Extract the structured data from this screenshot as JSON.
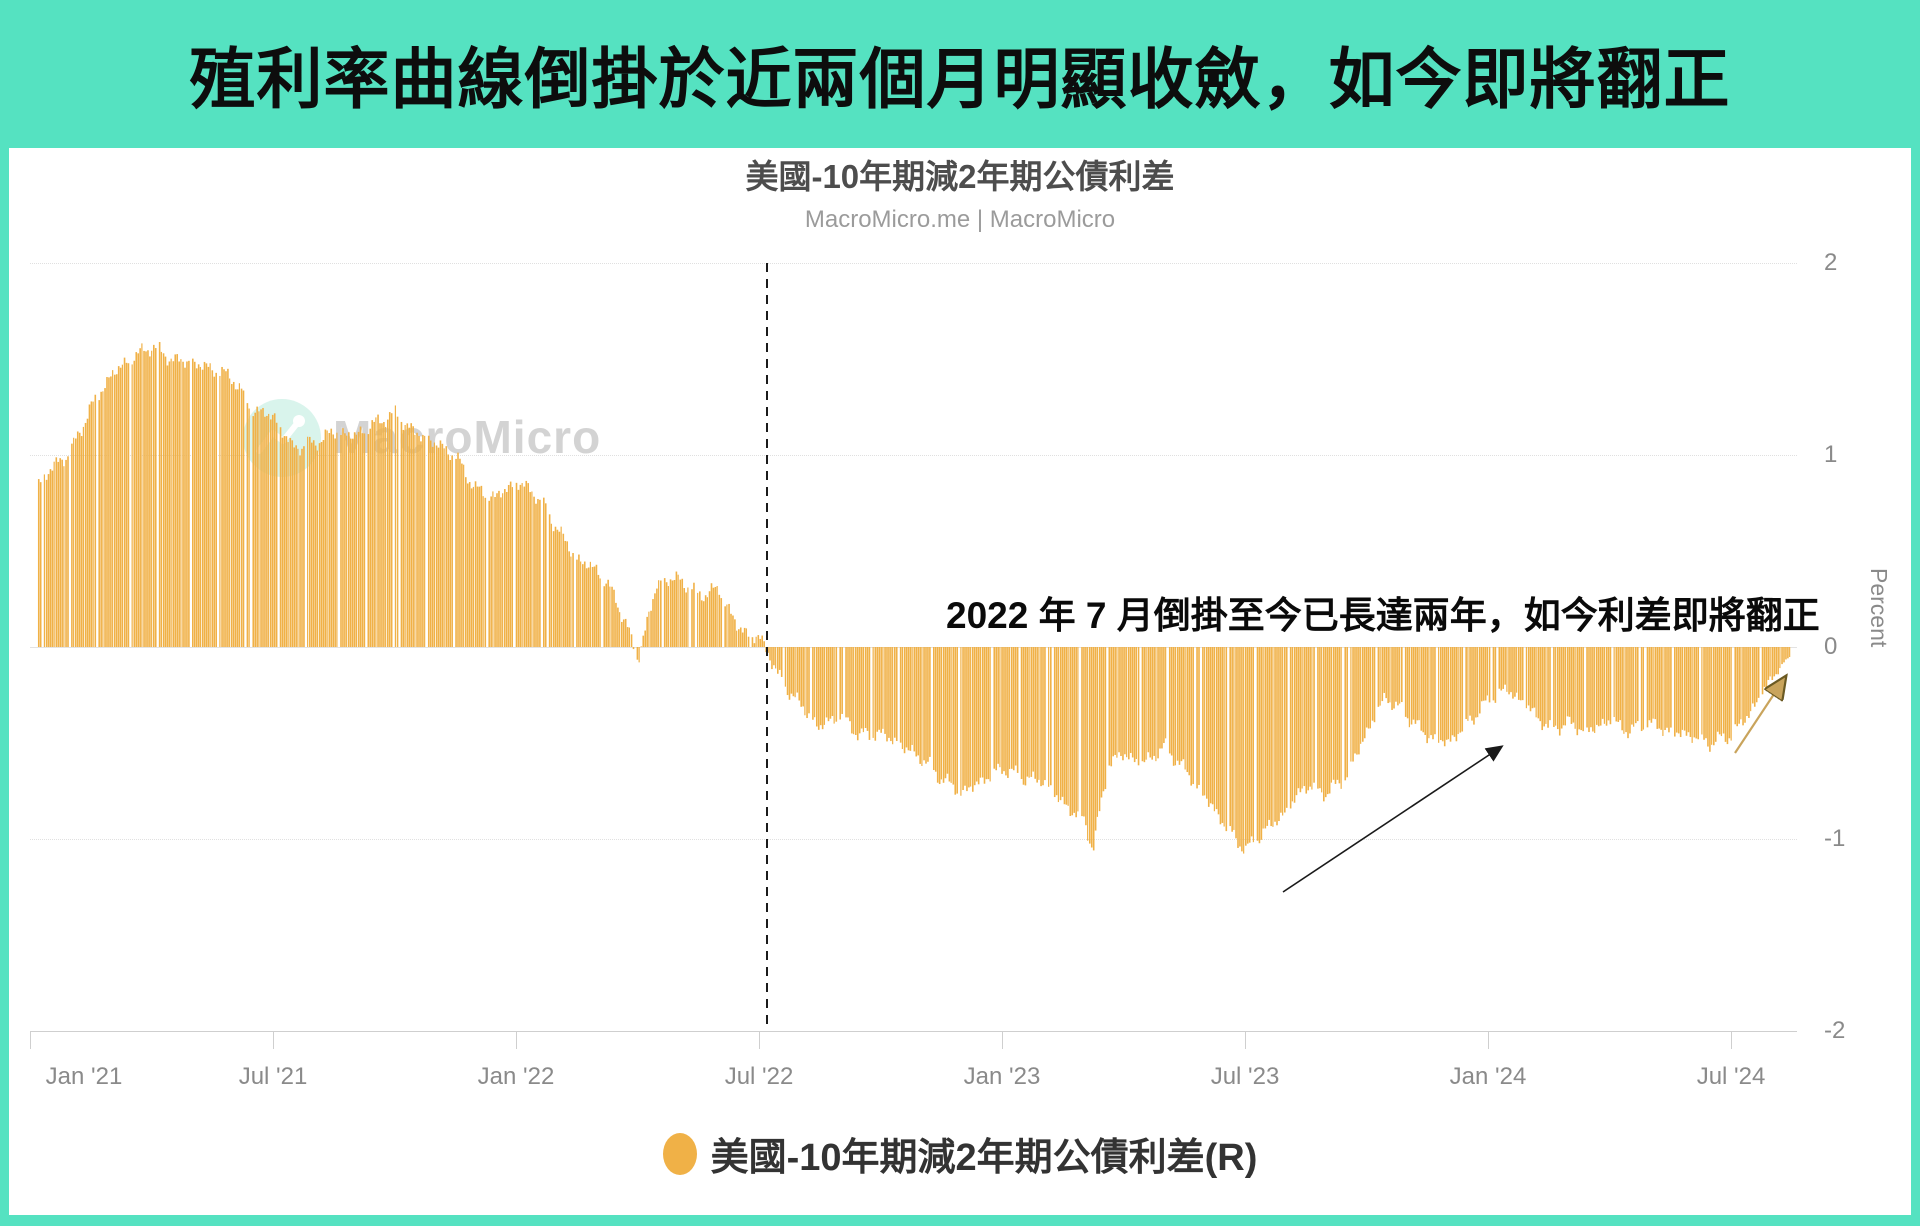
{
  "header": {
    "title": "殖利率曲線倒掛於近兩個月明顯收斂，如今即將翻正"
  },
  "chart": {
    "title": "美國-10年期減2年期公債利差",
    "source_line": "MacroMicro.me | MacroMicro",
    "watermark_text": "MacroMicro",
    "annotation_text": "2022 年 7 月倒掛至今已長達兩年，如今利差即將翻正",
    "legend_label": "美國-10年期減2年期公債利差(R)",
    "y_axis_title": "Percent",
    "y_ticks": [
      2,
      1,
      0,
      -1,
      -2
    ],
    "x_labels": [
      "Jan '21",
      "Jul '21",
      "Jan '22",
      "Jul '22",
      "Jan '23",
      "Jul '23",
      "Jan '24",
      "Jul '24"
    ],
    "colors": {
      "theme": "#55E2C1",
      "bar": "#F0B147",
      "inversion_line": "#1b1b1b",
      "black_arrow": "#1a1a1a",
      "trend_arrow": "#c9a45c"
    }
  },
  "chart_data": {
    "type": "bar",
    "title": "美國-10年期減2年期公債利差",
    "xlabel": "",
    "ylabel": "Percent",
    "ylim": [
      -2,
      2
    ],
    "x_range": [
      "2021-01-01",
      "2024-08-16"
    ],
    "grid": true,
    "legend_position": "bottom",
    "event_line_date": "2022-07-05",
    "series": [
      {
        "name": "美國-10年期減2年期公債利差(R)",
        "unit": "percent",
        "color": "#F0B147",
        "points": [
          [
            "2021-01-01",
            0.8
          ],
          [
            "2021-01-15",
            0.92
          ],
          [
            "2021-02-01",
            1.02
          ],
          [
            "2021-02-15",
            1.24
          ],
          [
            "2021-03-01",
            1.42
          ],
          [
            "2021-03-15",
            1.5
          ],
          [
            "2021-04-01",
            1.57
          ],
          [
            "2021-04-15",
            1.5
          ],
          [
            "2021-05-01",
            1.48
          ],
          [
            "2021-05-15",
            1.45
          ],
          [
            "2021-06-01",
            1.4
          ],
          [
            "2021-06-15",
            1.24
          ],
          [
            "2021-07-01",
            1.2
          ],
          [
            "2021-07-15",
            1.04
          ],
          [
            "2021-08-01",
            1.06
          ],
          [
            "2021-08-15",
            1.12
          ],
          [
            "2021-09-01",
            1.1
          ],
          [
            "2021-09-15",
            1.16
          ],
          [
            "2021-10-01",
            1.22
          ],
          [
            "2021-10-15",
            1.12
          ],
          [
            "2021-11-01",
            1.06
          ],
          [
            "2021-11-15",
            1.0
          ],
          [
            "2021-12-01",
            0.82
          ],
          [
            "2021-12-15",
            0.78
          ],
          [
            "2022-01-01",
            0.86
          ],
          [
            "2022-01-15",
            0.8
          ],
          [
            "2022-02-01",
            0.62
          ],
          [
            "2022-02-15",
            0.46
          ],
          [
            "2022-03-01",
            0.4
          ],
          [
            "2022-03-15",
            0.25
          ],
          [
            "2022-04-01",
            -0.06
          ],
          [
            "2022-04-15",
            0.33
          ],
          [
            "2022-05-01",
            0.36
          ],
          [
            "2022-05-15",
            0.27
          ],
          [
            "2022-06-01",
            0.3
          ],
          [
            "2022-06-15",
            0.1
          ],
          [
            "2022-07-01",
            0.04
          ],
          [
            "2022-07-08",
            -0.03
          ],
          [
            "2022-07-15",
            -0.16
          ],
          [
            "2022-08-01",
            -0.3
          ],
          [
            "2022-08-15",
            -0.42
          ],
          [
            "2022-09-01",
            -0.35
          ],
          [
            "2022-09-15",
            -0.46
          ],
          [
            "2022-10-01",
            -0.45
          ],
          [
            "2022-10-15",
            -0.51
          ],
          [
            "2022-11-01",
            -0.58
          ],
          [
            "2022-11-15",
            -0.68
          ],
          [
            "2022-12-01",
            -0.76
          ],
          [
            "2022-12-15",
            -0.7
          ],
          [
            "2023-01-01",
            -0.63
          ],
          [
            "2023-01-15",
            -0.68
          ],
          [
            "2023-02-01",
            -0.7
          ],
          [
            "2023-02-15",
            -0.81
          ],
          [
            "2023-03-01",
            -0.9
          ],
          [
            "2023-03-08",
            -1.05
          ],
          [
            "2023-03-20",
            -0.6
          ],
          [
            "2023-04-01",
            -0.56
          ],
          [
            "2023-04-15",
            -0.61
          ],
          [
            "2023-05-01",
            -0.52
          ],
          [
            "2023-05-15",
            -0.63
          ],
          [
            "2023-06-01",
            -0.78
          ],
          [
            "2023-06-15",
            -0.92
          ],
          [
            "2023-07-01",
            -1.06
          ],
          [
            "2023-07-15",
            -0.96
          ],
          [
            "2023-08-01",
            -0.86
          ],
          [
            "2023-08-15",
            -0.72
          ],
          [
            "2023-09-01",
            -0.76
          ],
          [
            "2023-09-15",
            -0.68
          ],
          [
            "2023-10-01",
            -0.44
          ],
          [
            "2023-10-15",
            -0.26
          ],
          [
            "2023-11-01",
            -0.36
          ],
          [
            "2023-11-15",
            -0.46
          ],
          [
            "2023-12-01",
            -0.5
          ],
          [
            "2023-12-15",
            -0.4
          ],
          [
            "2024-01-01",
            -0.28
          ],
          [
            "2024-01-15",
            -0.22
          ],
          [
            "2024-02-01",
            -0.32
          ],
          [
            "2024-02-15",
            -0.42
          ],
          [
            "2024-03-01",
            -0.4
          ],
          [
            "2024-03-15",
            -0.44
          ],
          [
            "2024-04-01",
            -0.38
          ],
          [
            "2024-04-15",
            -0.44
          ],
          [
            "2024-05-01",
            -0.4
          ],
          [
            "2024-05-15",
            -0.44
          ],
          [
            "2024-06-01",
            -0.46
          ],
          [
            "2024-06-15",
            -0.5
          ],
          [
            "2024-07-01",
            -0.46
          ],
          [
            "2024-07-15",
            -0.34
          ],
          [
            "2024-08-01",
            -0.16
          ],
          [
            "2024-08-10",
            -0.08
          ],
          [
            "2024-08-16",
            -0.04
          ]
        ]
      }
    ]
  }
}
